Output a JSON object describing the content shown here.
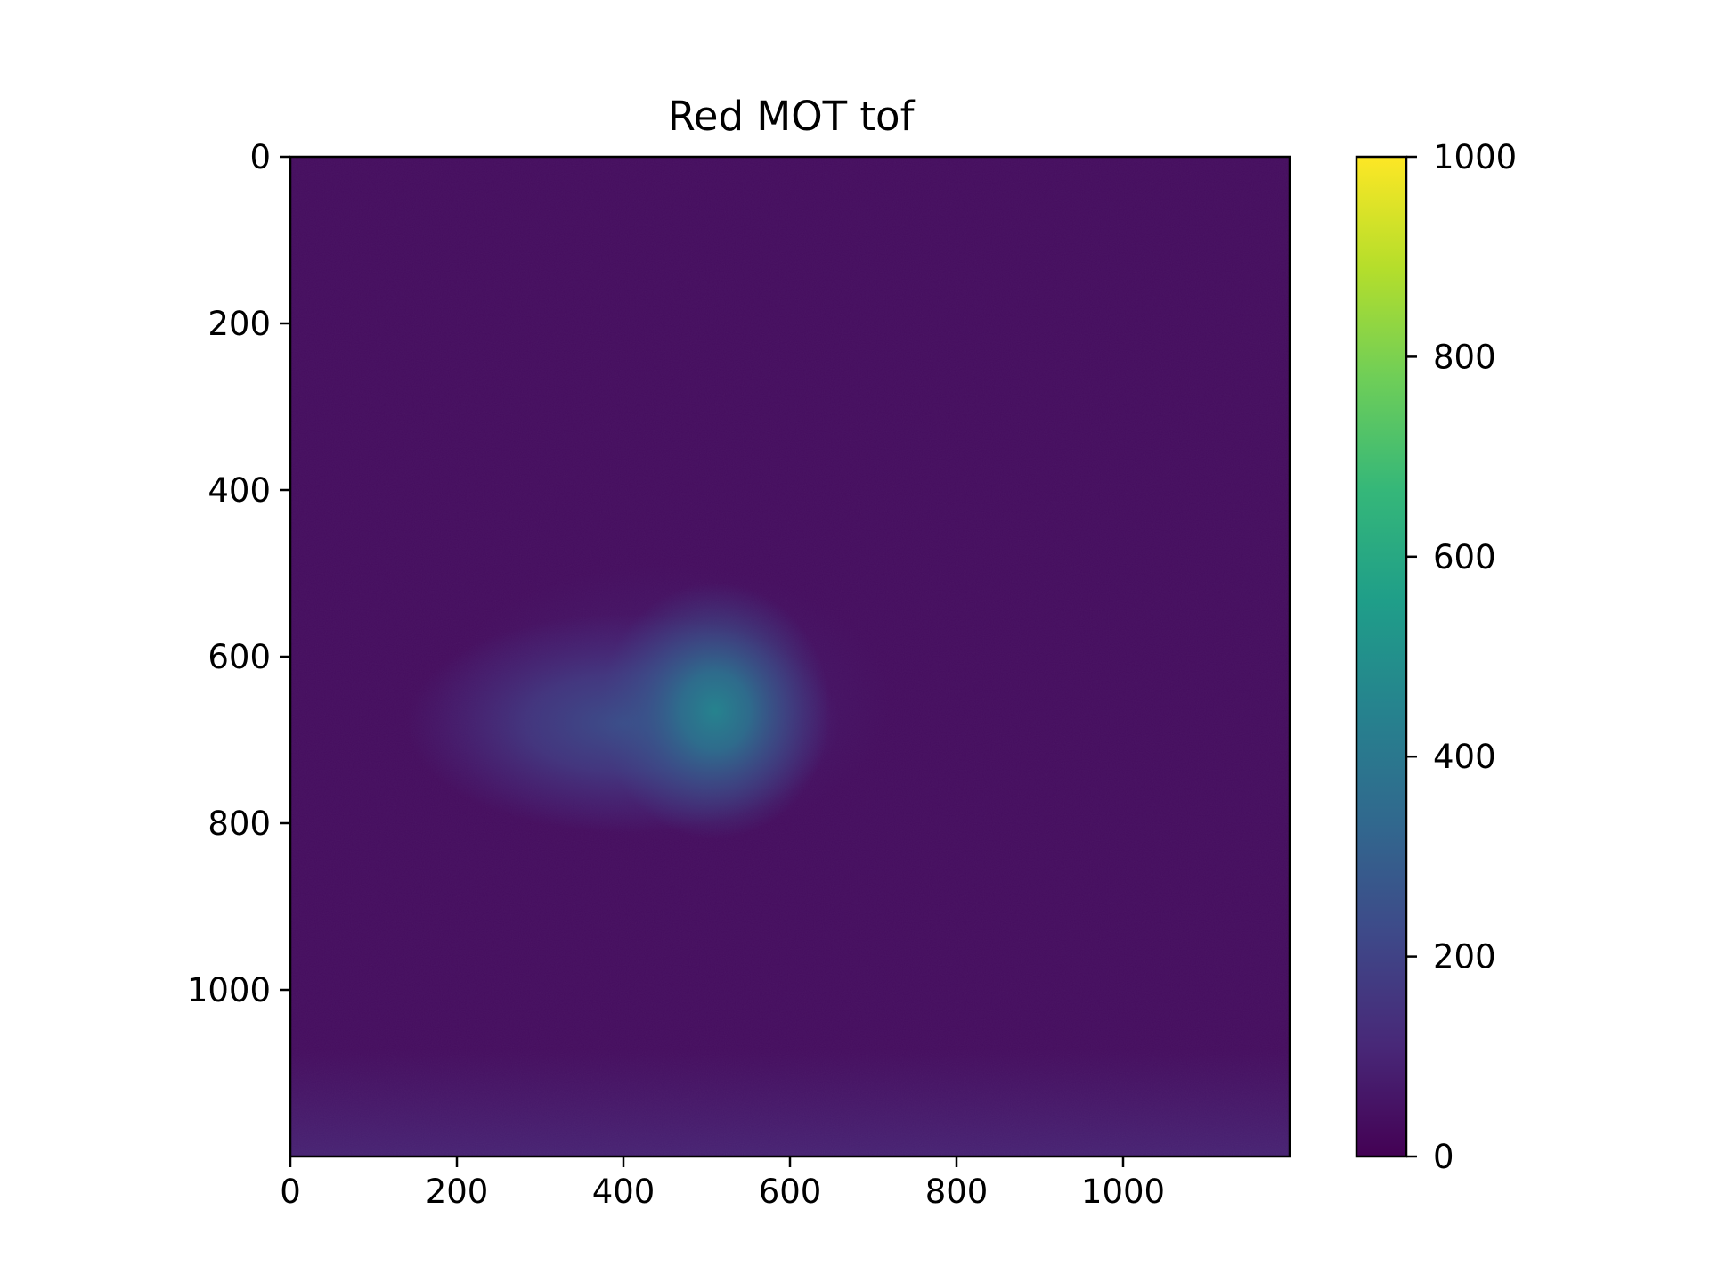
{
  "chart_data": {
    "type": "heatmap",
    "title": "Red MOT tof",
    "xlabel": "",
    "ylabel": "",
    "xlim": [
      0,
      1200
    ],
    "ylim": [
      1200,
      0
    ],
    "x_ticks": [
      "0",
      "200",
      "400",
      "600",
      "800",
      "1000"
    ],
    "y_ticks": [
      "0",
      "200",
      "400",
      "600",
      "800",
      "1000"
    ],
    "colormap": "viridis",
    "colorbar": {
      "range": [
        0,
        1000
      ],
      "ticks": [
        "0",
        "200",
        "400",
        "600",
        "800",
        "1000"
      ]
    },
    "background_level": 35,
    "bottom_edge_level": 80,
    "features": [
      {
        "name": "cloud core",
        "x": 510,
        "y": 665,
        "peak": 510,
        "sigma_x": 75,
        "sigma_y": 75
      },
      {
        "name": "cloud tail",
        "x": 400,
        "y": 680,
        "peak": 175,
        "sigma_x": 130,
        "sigma_y": 75
      }
    ],
    "grid": false,
    "legend": "none"
  },
  "colors": {
    "viridis_stops": [
      "#440154",
      "#482878",
      "#3e4989",
      "#31688e",
      "#26828e",
      "#1f9e89",
      "#35b779",
      "#6ece58",
      "#b5de2b",
      "#fde725"
    ]
  }
}
